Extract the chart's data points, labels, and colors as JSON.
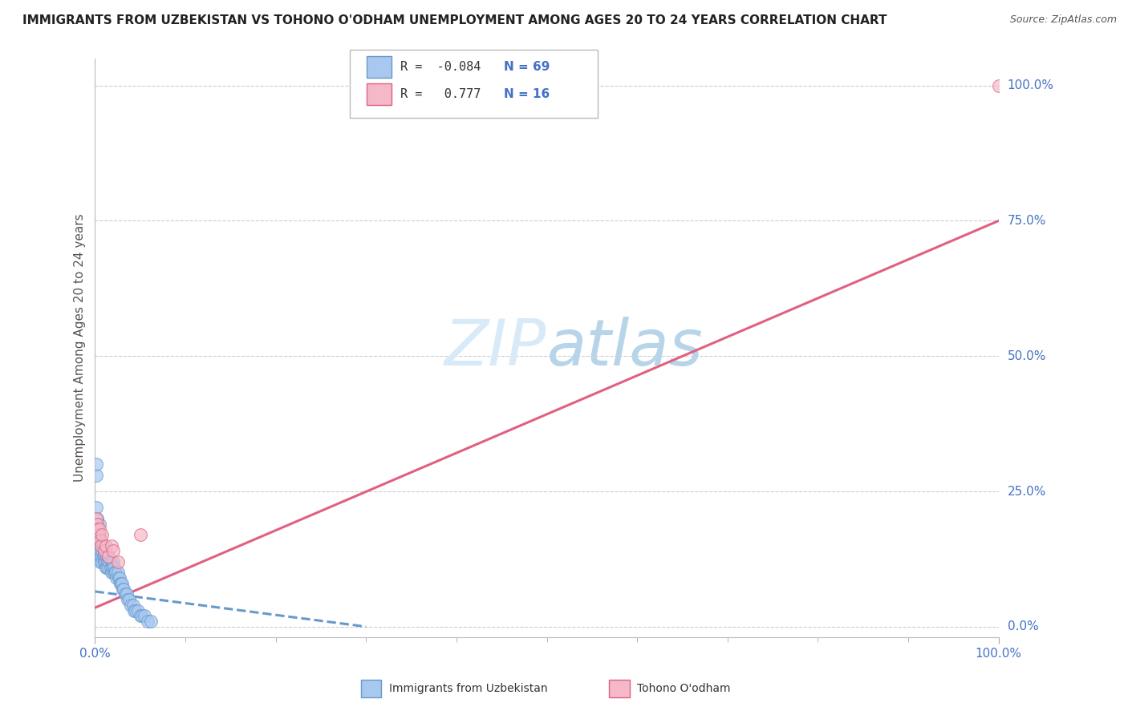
{
  "title": "IMMIGRANTS FROM UZBEKISTAN VS TOHONO O'ODHAM UNEMPLOYMENT AMONG AGES 20 TO 24 YEARS CORRELATION CHART",
  "source": "Source: ZipAtlas.com",
  "ylabel": "Unemployment Among Ages 20 to 24 years",
  "series": [
    {
      "name": "Immigrants from Uzbekistan",
      "R": -0.084,
      "N": 69,
      "color": "#a8c8f0",
      "edge_color": "#6699cc",
      "x": [
        0.001,
        0.002,
        0.002,
        0.003,
        0.003,
        0.003,
        0.004,
        0.004,
        0.004,
        0.005,
        0.005,
        0.005,
        0.005,
        0.006,
        0.006,
        0.006,
        0.007,
        0.007,
        0.008,
        0.008,
        0.009,
        0.009,
        0.01,
        0.01,
        0.01,
        0.011,
        0.011,
        0.012,
        0.012,
        0.013,
        0.013,
        0.014,
        0.015,
        0.015,
        0.016,
        0.017,
        0.018,
        0.018,
        0.019,
        0.02,
        0.02,
        0.021,
        0.022,
        0.023,
        0.024,
        0.025,
        0.026,
        0.027,
        0.028,
        0.029,
        0.03,
        0.031,
        0.032,
        0.033,
        0.035,
        0.036,
        0.038,
        0.04,
        0.042,
        0.043,
        0.045,
        0.048,
        0.05,
        0.052,
        0.055,
        0.058,
        0.062,
        0.001,
        0.001
      ],
      "y": [
        0.28,
        0.2,
        0.15,
        0.18,
        0.15,
        0.13,
        0.17,
        0.16,
        0.14,
        0.19,
        0.17,
        0.15,
        0.13,
        0.16,
        0.14,
        0.12,
        0.15,
        0.13,
        0.14,
        0.12,
        0.15,
        0.13,
        0.14,
        0.13,
        0.12,
        0.14,
        0.12,
        0.13,
        0.11,
        0.13,
        0.11,
        0.12,
        0.13,
        0.11,
        0.12,
        0.11,
        0.12,
        0.1,
        0.11,
        0.12,
        0.1,
        0.11,
        0.1,
        0.1,
        0.09,
        0.1,
        0.09,
        0.09,
        0.08,
        0.08,
        0.08,
        0.07,
        0.07,
        0.06,
        0.06,
        0.05,
        0.05,
        0.04,
        0.04,
        0.03,
        0.03,
        0.03,
        0.02,
        0.02,
        0.02,
        0.01,
        0.01,
        0.3,
        0.22
      ],
      "trend_style": "dashed",
      "trend_color": "#6699cc",
      "trend_x": [
        0.0,
        0.3
      ],
      "trend_y": [
        0.065,
        0.0
      ]
    },
    {
      "name": "Tohono O'odham",
      "R": 0.777,
      "N": 16,
      "color": "#f4b8c8",
      "edge_color": "#e06080",
      "x": [
        0.001,
        0.002,
        0.003,
        0.004,
        0.005,
        0.006,
        0.007,
        0.008,
        0.01,
        0.012,
        0.015,
        0.018,
        0.02,
        0.025,
        0.05,
        1.0
      ],
      "y": [
        0.2,
        0.19,
        0.18,
        0.17,
        0.18,
        0.16,
        0.15,
        0.17,
        0.14,
        0.15,
        0.13,
        0.15,
        0.14,
        0.12,
        0.17,
        1.0
      ],
      "trend_style": "solid",
      "trend_color": "#e06080",
      "trend_x": [
        0.0,
        1.0
      ],
      "trend_y": [
        0.035,
        0.75
      ]
    }
  ],
  "xlim": [
    0.0,
    1.0
  ],
  "ylim": [
    -0.02,
    1.05
  ],
  "x_ticks": [
    0.0,
    1.0
  ],
  "x_tick_labels": [
    "0.0%",
    "100.0%"
  ],
  "x_minor_ticks": [
    0.1,
    0.2,
    0.3,
    0.4,
    0.5,
    0.6,
    0.7,
    0.8,
    0.9
  ],
  "y_ticks_right": [
    0.0,
    0.25,
    0.5,
    0.75,
    1.0
  ],
  "y_tick_labels_right": [
    "0.0%",
    "25.0%",
    "50.0%",
    "75.0%",
    "100.0%"
  ],
  "grid_color": "#cccccc",
  "background_color": "#ffffff",
  "watermark_zip": "ZIP",
  "watermark_atlas": "atlas",
  "watermark_color_zip": "#d8eaf8",
  "watermark_color_atlas": "#b8d4e8",
  "title_fontsize": 11,
  "source_fontsize": 9,
  "legend_R_color": "#333333",
  "legend_N_color": "#4472c4",
  "axis_label_color": "#4472c4",
  "ylabel_color": "#555555"
}
